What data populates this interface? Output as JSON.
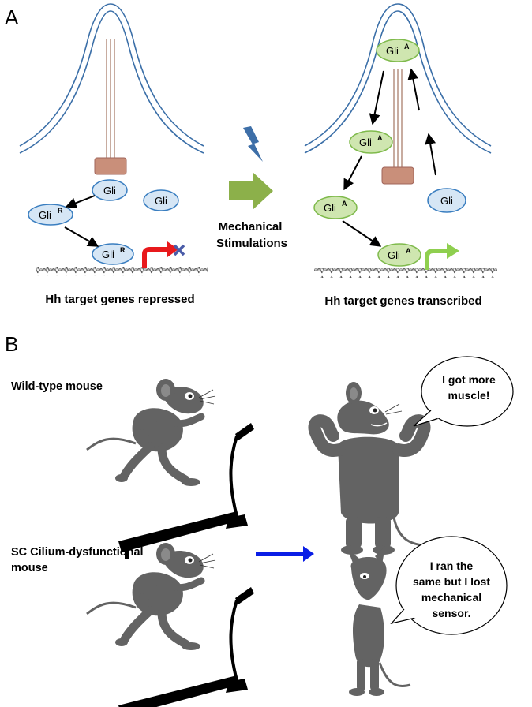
{
  "panel_a": {
    "letter": "A",
    "left": {
      "molecules": [
        {
          "text": "Gli",
          "sup": ""
        },
        {
          "text": "Gli",
          "sup": ""
        },
        {
          "text": "Gli",
          "sup": "R"
        },
        {
          "text": "Gli",
          "sup": "R"
        }
      ],
      "caption": "Hh target genes repressed"
    },
    "middle": {
      "label_line1": "Mechanical",
      "label_line2": "Stimulations"
    },
    "right": {
      "molecules": [
        {
          "text": "Gli",
          "sup": "A"
        },
        {
          "text": "Gli",
          "sup": "A"
        },
        {
          "text": "Gli",
          "sup": "A"
        },
        {
          "text": "Gli",
          "sup": "A"
        },
        {
          "text": "Gli",
          "sup": ""
        }
      ],
      "caption": "Hh target genes transcribed"
    }
  },
  "panel_b": {
    "letter": "B",
    "wild_type_label": "Wild-type mouse",
    "wild_type_speech": [
      "I got more",
      "muscle!"
    ],
    "mutant_label_line1": "SC Cilium-dysfunctional",
    "mutant_label_line2": "mouse",
    "mutant_speech": [
      "I ran the",
      "same but I  lost",
      "mechanical",
      "sensor."
    ]
  },
  "colors": {
    "cilium_outline": "#3b6fa8",
    "basal_body": "#c98f7a",
    "gli_inactive_fill": "#d6e6f5",
    "gli_inactive_stroke": "#3a7ec0",
    "gli_active_fill": "#cfe6b0",
    "gli_active_stroke": "#7fba4c",
    "repressed_arrow": "#e8191c",
    "transcribed_arrow": "#8fcf4f",
    "stimulation_arrow": "#8cb04a",
    "lightning": "#3e6fa8",
    "panel_b_arrow": "#0a1ee6",
    "mouse_gray": "#636363"
  }
}
